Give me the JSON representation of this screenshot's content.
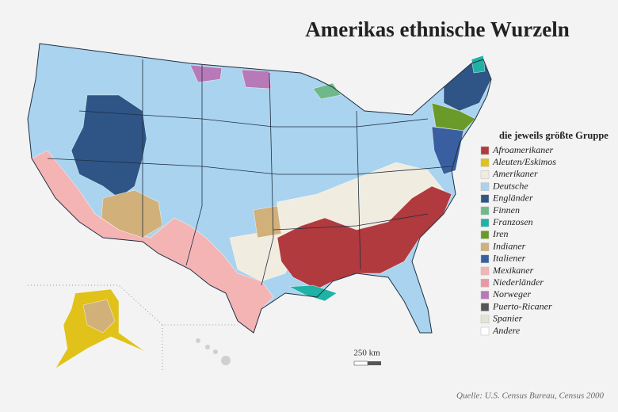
{
  "title": "Amerikas ethnische Wurzeln",
  "legend": {
    "title": "die jeweils größte Gruppe",
    "items": [
      {
        "label": "Afroamerikaner",
        "color": "#b03a3e"
      },
      {
        "label": "Aleuten/Eskimos",
        "color": "#e0c21a"
      },
      {
        "label": "Amerikaner",
        "color": "#f1ece0"
      },
      {
        "label": "Deutsche",
        "color": "#a9d3ee"
      },
      {
        "label": "Engländer",
        "color": "#2e5585"
      },
      {
        "label": "Finnen",
        "color": "#6fb88a"
      },
      {
        "label": "Franzosen",
        "color": "#1fb2a5"
      },
      {
        "label": "Iren",
        "color": "#6a9a2a"
      },
      {
        "label": "Indianer",
        "color": "#d2b07a"
      },
      {
        "label": "Italiener",
        "color": "#3a5fa0"
      },
      {
        "label": "Mexikaner",
        "color": "#f4b4b4"
      },
      {
        "label": "Niederländer",
        "color": "#e89aa4"
      },
      {
        "label": "Norweger",
        "color": "#b779b8"
      },
      {
        "label": "Puerto-Ricaner",
        "color": "#555555"
      },
      {
        "label": "Spanier",
        "color": "#dfe6d4"
      },
      {
        "label": "Andere",
        "color": "#ffffff"
      }
    ]
  },
  "scale": "250 km",
  "source": "Quelle: U.S. Census Bureau, Census 2000"
}
